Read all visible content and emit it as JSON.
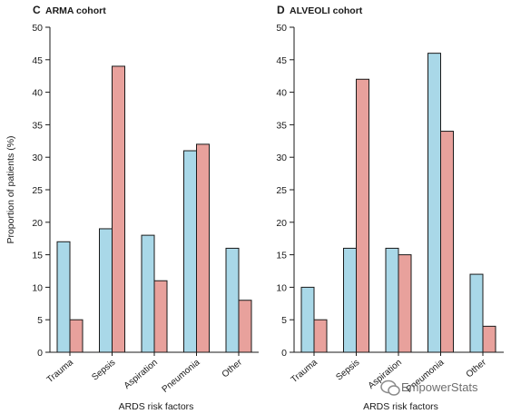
{
  "watermark": "EmpowerStats",
  "colors": {
    "series_a": "#a9d8e8",
    "series_b": "#e8a19c",
    "stroke": "#1a1a1a"
  },
  "chart_data": [
    {
      "type": "bar",
      "panel_letter": "C",
      "title": "ARMA cohort",
      "xlabel": "ARDS risk factors",
      "ylabel": "Proportion of patients (%)",
      "ylim": [
        0,
        50
      ],
      "yticks": [
        "0",
        "5",
        "10",
        "15",
        "20",
        "25",
        "30",
        "35",
        "40",
        "45",
        "50"
      ],
      "categories": [
        "Trauma",
        "Sepsis",
        "Aspiration",
        "Pneumonia",
        "Other"
      ],
      "series": [
        {
          "values": [
            17,
            19,
            18,
            31,
            16
          ]
        },
        {
          "values": [
            5,
            44,
            11,
            32,
            8
          ]
        }
      ]
    },
    {
      "type": "bar",
      "panel_letter": "D",
      "title": "ALVEOLI cohort",
      "xlabel": "ARDS risk factors",
      "ylabel": "",
      "ylim": [
        0,
        50
      ],
      "yticks": [
        "0",
        "5",
        "10",
        "15",
        "20",
        "25",
        "30",
        "35",
        "40",
        "45",
        "50"
      ],
      "categories": [
        "Trauma",
        "Sepsis",
        "Aspiration",
        "Pneumonia",
        "Other"
      ],
      "series": [
        {
          "values": [
            10,
            16,
            16,
            46,
            12
          ]
        },
        {
          "values": [
            5,
            42,
            15,
            34,
            4
          ]
        }
      ]
    }
  ]
}
